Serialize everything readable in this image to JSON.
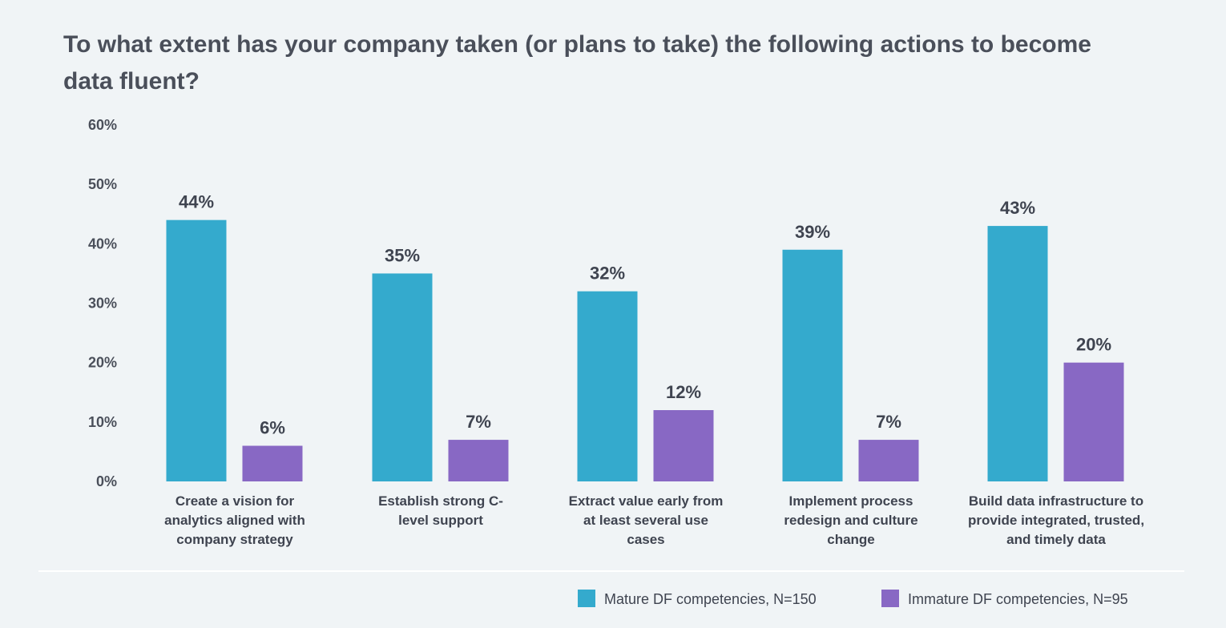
{
  "chart_data": {
    "type": "bar",
    "title": "To what extent has your company taken (or plans to take) the following actions to become data fluent?",
    "title_lines": [
      "To what extent has your company taken (or plans to take) the following actions to become",
      "data fluent?"
    ],
    "categories": [
      "Create a vision for analytics aligned with company strategy",
      "Establish strong C-level support",
      "Extract value early from at least several use cases",
      "Implement process redesign and culture change",
      "Build data infrastructure to provide integrated, trusted, and timely data"
    ],
    "category_lines": [
      [
        "Create a vision for",
        "analytics aligned with",
        "company strategy"
      ],
      [
        "Establish strong C-",
        "level support"
      ],
      [
        "Extract value early from",
        "at least several use",
        "cases"
      ],
      [
        "Implement process",
        "redesign and culture",
        "change"
      ],
      [
        "Build data infrastructure to",
        "provide integrated, trusted,",
        "and timely data"
      ]
    ],
    "series": [
      {
        "name": "Mature DF competencies, N=150",
        "values": [
          44,
          35,
          32,
          39,
          43
        ],
        "labels": [
          "44%",
          "35%",
          "32%",
          "39%",
          "43%"
        ],
        "color": "#34aacd"
      },
      {
        "name": "Immature DF competencies, N=95",
        "values": [
          6,
          7,
          12,
          7,
          20
        ],
        "labels": [
          "6%",
          "7%",
          "12%",
          "7%",
          "20%"
        ],
        "color": "#8868c4"
      }
    ],
    "y_ticks": [
      "0%",
      "10%",
      "20%",
      "30%",
      "40%",
      "50%",
      "60%"
    ],
    "xlabel": "",
    "ylabel": "",
    "ylim": [
      0,
      60
    ],
    "grid": false,
    "legend_position": "bottom-right"
  }
}
